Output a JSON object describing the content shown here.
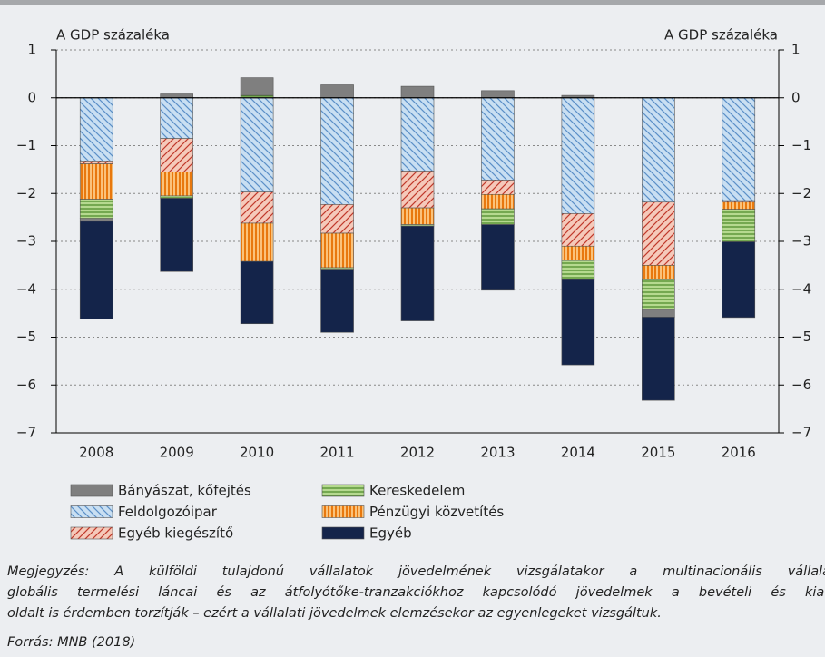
{
  "chart_data": {
    "type": "bar",
    "stacked": true,
    "y_label": "A GDP százaléka",
    "y2_label": "A GDP százaléka",
    "categories": [
      "2008",
      "2009",
      "2010",
      "2011",
      "2012",
      "2013",
      "2014",
      "2015",
      "2016"
    ],
    "series": [
      {
        "name": "Bányászat, kőfejtés",
        "color": "#7f7f7f",
        "pattern": "solid",
        "values": [
          -0.06,
          0.08,
          0.37,
          0.27,
          0.24,
          0.15,
          0.05,
          -0.16,
          0
        ]
      },
      {
        "name": "Feldolgozóipar",
        "color": "#c9dff2",
        "pattern": "diagonal",
        "pattern_color": "#5b8fc7",
        "values": [
          -1.32,
          -0.85,
          -1.97,
          -2.23,
          -1.53,
          -1.72,
          -2.42,
          -2.18,
          -2.15
        ]
      },
      {
        "name": "Egyéb kiegészítő",
        "color": "#f5c9ba",
        "pattern": "diagonal-reverse",
        "pattern_color": "#c0392b",
        "values": [
          -0.06,
          -0.7,
          -0.65,
          -0.6,
          -0.77,
          -0.3,
          -0.68,
          -1.32,
          -0.03
        ]
      },
      {
        "name": "Kereskedelem",
        "color": "#b5d98f",
        "pattern": "horizontal",
        "pattern_color": "#4e8a2a",
        "values": [
          -0.4,
          -0.05,
          0.05,
          -0.03,
          -0.03,
          -0.33,
          -0.4,
          -0.62,
          -0.68
        ]
      },
      {
        "name": "Pénzügyi közvetítés",
        "color": "#fbc27a",
        "pattern": "vertical",
        "pattern_color": "#e8780e",
        "values": [
          -0.74,
          -0.5,
          -0.8,
          -0.72,
          -0.35,
          -0.3,
          -0.3,
          -0.3,
          -0.15
        ]
      },
      {
        "name": "Egyéb",
        "color": "#14244a",
        "pattern": "solid",
        "values": [
          -2.04,
          -1.53,
          -1.3,
          -1.32,
          -1.98,
          -1.37,
          -1.78,
          -1.74,
          -1.58
        ]
      }
    ],
    "ylim": [
      -7,
      1
    ],
    "yticks": [
      1,
      0,
      {
        "value": -1,
        "label": "−1"
      },
      {
        "value": -2,
        "label": "−2"
      },
      {
        "value": -3,
        "label": "−3"
      },
      {
        "value": -4,
        "label": "−4"
      },
      {
        "value": -5,
        "label": "−5"
      },
      {
        "value": -6,
        "label": "−6"
      },
      {
        "value": -7,
        "label": "−7"
      }
    ],
    "y2lim": [
      -7,
      1
    ],
    "y2ticks": [
      1,
      0,
      {
        "value": -1,
        "label": "−1"
      },
      {
        "value": -2,
        "label": "−2"
      },
      {
        "value": -3,
        "label": "−3"
      },
      {
        "value": -4,
        "label": "−4"
      },
      {
        "value": -5,
        "label": "−5"
      },
      {
        "value": -6,
        "label": "−6"
      },
      {
        "value": -7,
        "label": "−7"
      }
    ],
    "grid": true,
    "note": [
      "Megjegyzés: A külföldi tulajdonú vállalatok jövedelmének vizsgálatakor a multinacionális vállalatok",
      "globális termelési láncai és az átfolyótőke-tranzakciókhoz kapcsolódó jövedelmek a bevételi és kiadási",
      "oldalt is érdemben torzítják – ezért a vállalati jövedelmek elemzésekor az egyenlegeket vizsgáltuk."
    ],
    "source": "Forrás: MNB (2018)"
  }
}
